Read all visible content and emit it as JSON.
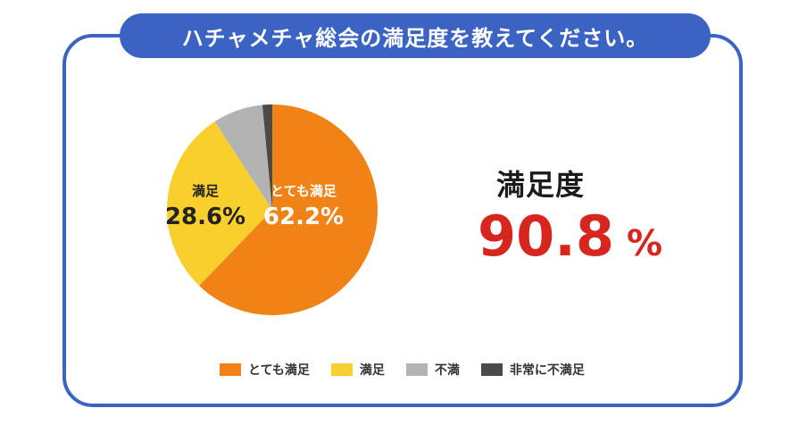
{
  "title": "ハチャメチャ総会の満足度を教えてください。",
  "metric": {
    "label": "満足度",
    "value": "90.8",
    "unit": "%"
  },
  "colors": {
    "frame": "#3a63c4",
    "accent_red": "#d6261d"
  },
  "chart_data": {
    "type": "pie",
    "slices": [
      {
        "label": "とても満足",
        "value": 62.2,
        "value_label": "62.2%",
        "color": "#f18216"
      },
      {
        "label": "満足",
        "value": 28.6,
        "value_label": "28.6%",
        "color": "#f8cf2c"
      },
      {
        "label": "不満",
        "value": 7.7,
        "value_label": "",
        "color": "#b3b3b3"
      },
      {
        "label": "非常に不満足",
        "value": 1.5,
        "value_label": "",
        "color": "#4a4a4a"
      }
    ],
    "legend": [
      "とても満足",
      "満足",
      "不満",
      "非常に不満足"
    ],
    "legend_position": "bottom"
  }
}
